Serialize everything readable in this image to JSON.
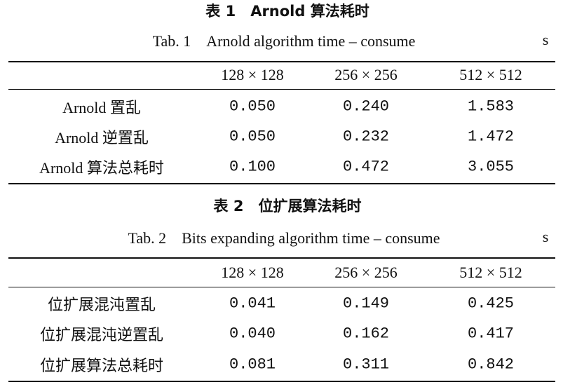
{
  "tables": [
    {
      "title": "表 1　Arnold 算法耗时",
      "subtitle": "Tab. 1　Arnold algorithm time – consume",
      "unit": "s",
      "header": [
        "128 × 128",
        "256 × 256",
        "512 × 512"
      ],
      "rows": [
        [
          "Arnold 置乱",
          "0.050",
          "0.240",
          "1.583"
        ],
        [
          "Arnold 逆置乱",
          "0.050",
          "0.232",
          "1.472"
        ],
        [
          "Arnold 算法总耗时",
          "0.100",
          "0.472",
          "3.055"
        ]
      ]
    },
    {
      "title": "表 2　位扩展算法耗时",
      "subtitle": "Tab. 2　Bits expanding algorithm time – consume",
      "unit": "s",
      "header": [
        "128 × 128",
        "256 × 256",
        "512 × 512"
      ],
      "rows": [
        [
          "位扩展混沌置乱",
          "0.041",
          "0.149",
          "0.425"
        ],
        [
          "位扩展混沌逆置乱",
          "0.040",
          "0.162",
          "0.417"
        ],
        [
          "位扩展算法总耗时",
          "0.081",
          "0.311",
          "0.842"
        ]
      ]
    }
  ]
}
